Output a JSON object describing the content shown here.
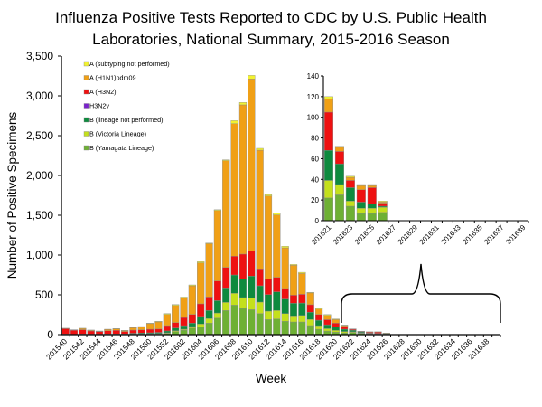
{
  "chart_data": {
    "type": "bar",
    "stacked": true,
    "title": [
      "Influenza Positive Tests Reported to CDC by U.S. Public Health",
      "Laboratories, National Summary, 2015-2016 Season"
    ],
    "xlabel": "Week",
    "ylabel": "Number of Positive Specimens",
    "ylim": [
      0,
      3500
    ],
    "yticks": [
      "0",
      "500",
      "1,000",
      "1,500",
      "2,000",
      "2,500",
      "3,000",
      "3,500"
    ],
    "yticks_values": [
      0,
      500,
      1000,
      1500,
      2000,
      2500,
      3000,
      3500
    ],
    "grid": false,
    "legend_position": "top-left",
    "categories": [
      "201540",
      "201541",
      "201542",
      "201543",
      "201544",
      "201545",
      "201546",
      "201547",
      "201548",
      "201549",
      "201550",
      "201551",
      "201552",
      "201601",
      "201602",
      "201603",
      "201604",
      "201605",
      "201606",
      "201607",
      "201608",
      "201609",
      "201610",
      "201611",
      "201612",
      "201613",
      "201614",
      "201615",
      "201616",
      "201617",
      "201618",
      "201619",
      "201620",
      "201621",
      "201622",
      "201623",
      "201624",
      "201625",
      "201626",
      "201627",
      "201628",
      "201629",
      "201630",
      "201631",
      "201632",
      "201633",
      "201634",
      "201635",
      "201636",
      "201637",
      "201638",
      "201639"
    ],
    "legend_order": [
      "A (subtyping not performed)",
      "A (H1N1)pdm09",
      "A (H3N2)",
      "H3N2v",
      "B (lineage not performed)",
      "B (Victoria Lineage)",
      "B (Yamagata Lineage)"
    ],
    "series": [
      {
        "name": "B (Yamagata Lineage)",
        "color": "#6eb034",
        "values": [
          3,
          2,
          3,
          2,
          2,
          3,
          3,
          3,
          5,
          6,
          8,
          10,
          15,
          38,
          57,
          83,
          95,
          144,
          208,
          303,
          371,
          330,
          314,
          265,
          189,
          197,
          167,
          159,
          159,
          114,
          68,
          45,
          30,
          22,
          25,
          14,
          7,
          7,
          8,
          0,
          0,
          0,
          0,
          0,
          0,
          0,
          0,
          0,
          0,
          0,
          0,
          0
        ]
      },
      {
        "name": "B (Victoria Lineage)",
        "color": "#c4e01c",
        "values": [
          1,
          1,
          1,
          1,
          1,
          1,
          1,
          1,
          2,
          2,
          3,
          4,
          8,
          11,
          11,
          19,
          38,
          57,
          64,
          102,
          148,
          136,
          148,
          144,
          106,
          106,
          98,
          76,
          83,
          76,
          45,
          30,
          23,
          17,
          10,
          5,
          5,
          5,
          5,
          0,
          0,
          0,
          0,
          0,
          0,
          0,
          0,
          0,
          0,
          0,
          0,
          0
        ]
      },
      {
        "name": "B (lineage not performed)",
        "color": "#0e8a3e",
        "values": [
          3,
          2,
          3,
          3,
          3,
          4,
          4,
          5,
          10,
          12,
          12,
          14,
          23,
          34,
          45,
          42,
          95,
          102,
          155,
          182,
          231,
          235,
          273,
          205,
          208,
          235,
          182,
          159,
          155,
          91,
          68,
          49,
          42,
          29,
          20,
          13,
          6,
          4,
          1,
          0,
          0,
          0,
          0,
          0,
          0,
          0,
          0,
          0,
          0,
          0,
          0,
          0
        ]
      },
      {
        "name": "H3N2v",
        "color": "#7a22cc",
        "values": [
          0,
          0,
          0,
          0,
          0,
          0,
          0,
          0,
          0,
          0,
          0,
          0,
          0,
          0,
          0,
          0,
          0,
          0,
          0,
          0,
          0,
          0,
          0,
          0,
          0,
          0,
          0,
          0,
          0,
          0,
          0,
          0,
          0,
          0,
          0,
          0,
          0,
          0,
          0,
          0,
          0,
          0,
          0,
          0,
          0,
          0,
          0,
          0,
          0,
          0,
          0,
          0
        ]
      },
      {
        "name": "A (H3N2)",
        "color": "#ee1111",
        "values": [
          68,
          50,
          55,
          40,
          33,
          40,
          45,
          30,
          40,
          40,
          45,
          42,
          68,
          68,
          102,
          110,
          159,
          170,
          246,
          258,
          235,
          311,
          318,
          212,
          197,
          182,
          133,
          102,
          110,
          95,
          72,
          64,
          49,
          37,
          12,
          7,
          12,
          16,
          3,
          0,
          0,
          0,
          0,
          0,
          0,
          0,
          0,
          0,
          0,
          0,
          0,
          0
        ]
      },
      {
        "name": "A (H1N1)pdm09",
        "color": "#f0a016",
        "values": [
          4,
          5,
          16,
          10,
          5,
          18,
          20,
          12,
          30,
          38,
          70,
          90,
          140,
          216,
          246,
          360,
          515,
          670,
          886,
          1341,
          1666,
          1875,
          2159,
          1492,
          1041,
          784,
          511,
          375,
          261,
          148,
          68,
          53,
          45,
          13,
          4,
          3,
          4,
          2,
          1,
          0,
          0,
          0,
          0,
          0,
          0,
          0,
          0,
          0,
          0,
          0,
          0,
          0
        ]
      },
      {
        "name": "A (subtyping not performed)",
        "color": "#f2f230",
        "values": [
          1,
          1,
          2,
          1,
          1,
          2,
          3,
          2,
          4,
          4,
          6,
          7,
          11,
          11,
          11,
          11,
          15,
          8,
          11,
          11,
          38,
          30,
          45,
          23,
          19,
          23,
          19,
          11,
          15,
          8,
          11,
          11,
          8,
          2,
          1,
          1,
          1,
          1,
          1,
          0,
          0,
          0,
          0,
          0,
          0,
          0,
          0,
          0,
          0,
          0,
          0,
          0
        ]
      }
    ],
    "inset": {
      "type": "bar",
      "stacked": true,
      "x_range": [
        "201621",
        "201639"
      ],
      "ylim": [
        0,
        140
      ],
      "yticks": [
        "0",
        "20",
        "40",
        "60",
        "80",
        "100",
        "120",
        "140"
      ],
      "yticks_values": [
        0,
        20,
        40,
        60,
        80,
        100,
        120,
        140
      ],
      "annotation": "brace linking weeks 201621–201639 to the inset"
    }
  }
}
